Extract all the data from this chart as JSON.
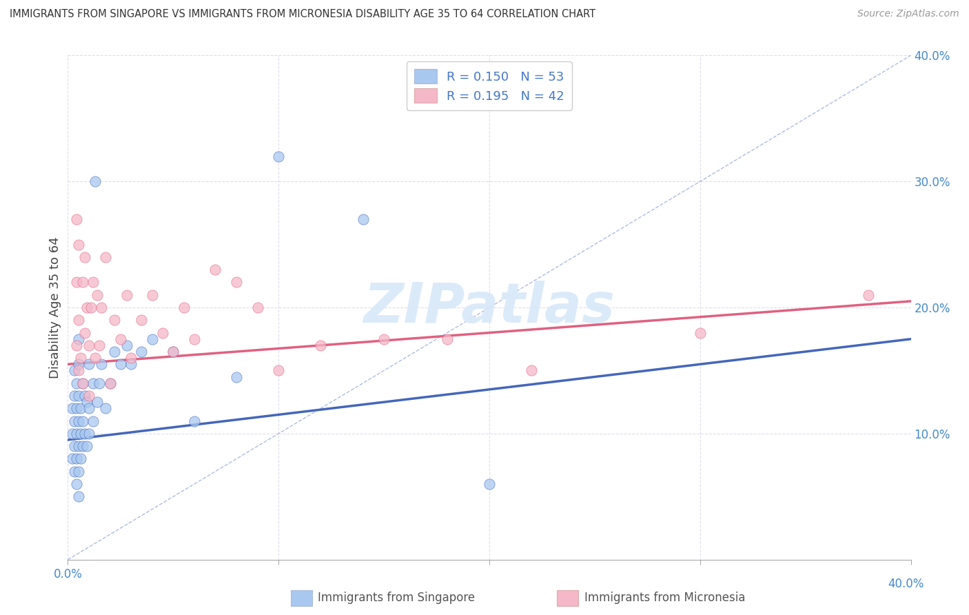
{
  "title": "IMMIGRANTS FROM SINGAPORE VS IMMIGRANTS FROM MICRONESIA DISABILITY AGE 35 TO 64 CORRELATION CHART",
  "source": "Source: ZipAtlas.com",
  "ylabel": "Disability Age 35 to 64",
  "xlim": [
    0.0,
    0.4
  ],
  "ylim": [
    0.0,
    0.4
  ],
  "legend_label1": "Immigrants from Singapore",
  "legend_label2": "Immigrants from Micronesia",
  "color_singapore": "#a8c8f0",
  "color_micronesia": "#f5b8c8",
  "color_trend_sg": "#4466bb",
  "color_trend_mc": "#e06080",
  "color_diagonal": "#99aadd",
  "watermark_color": "#d8e8f8",
  "singapore_x": [
    0.002,
    0.002,
    0.002,
    0.003,
    0.003,
    0.003,
    0.003,
    0.003,
    0.004,
    0.004,
    0.004,
    0.004,
    0.004,
    0.005,
    0.005,
    0.005,
    0.005,
    0.005,
    0.005,
    0.005,
    0.006,
    0.006,
    0.006,
    0.007,
    0.007,
    0.007,
    0.008,
    0.008,
    0.009,
    0.009,
    0.01,
    0.01,
    0.01,
    0.012,
    0.012,
    0.013,
    0.014,
    0.015,
    0.016,
    0.018,
    0.02,
    0.022,
    0.025,
    0.028,
    0.03,
    0.035,
    0.04,
    0.05,
    0.06,
    0.08,
    0.1,
    0.14,
    0.2
  ],
  "singapore_y": [
    0.08,
    0.1,
    0.12,
    0.07,
    0.09,
    0.11,
    0.13,
    0.15,
    0.06,
    0.08,
    0.1,
    0.12,
    0.14,
    0.05,
    0.07,
    0.09,
    0.11,
    0.13,
    0.155,
    0.175,
    0.08,
    0.1,
    0.12,
    0.09,
    0.11,
    0.14,
    0.1,
    0.13,
    0.09,
    0.125,
    0.1,
    0.12,
    0.155,
    0.11,
    0.14,
    0.3,
    0.125,
    0.14,
    0.155,
    0.12,
    0.14,
    0.165,
    0.155,
    0.17,
    0.155,
    0.165,
    0.175,
    0.165,
    0.11,
    0.145,
    0.32,
    0.27,
    0.06
  ],
  "micronesia_x": [
    0.004,
    0.004,
    0.004,
    0.005,
    0.005,
    0.005,
    0.006,
    0.007,
    0.007,
    0.008,
    0.008,
    0.009,
    0.01,
    0.01,
    0.011,
    0.012,
    0.013,
    0.014,
    0.015,
    0.016,
    0.018,
    0.02,
    0.022,
    0.025,
    0.028,
    0.03,
    0.035,
    0.04,
    0.045,
    0.05,
    0.055,
    0.06,
    0.07,
    0.08,
    0.09,
    0.1,
    0.12,
    0.15,
    0.18,
    0.22,
    0.3,
    0.38
  ],
  "micronesia_y": [
    0.17,
    0.22,
    0.27,
    0.15,
    0.19,
    0.25,
    0.16,
    0.14,
    0.22,
    0.18,
    0.24,
    0.2,
    0.13,
    0.17,
    0.2,
    0.22,
    0.16,
    0.21,
    0.17,
    0.2,
    0.24,
    0.14,
    0.19,
    0.175,
    0.21,
    0.16,
    0.19,
    0.21,
    0.18,
    0.165,
    0.2,
    0.175,
    0.23,
    0.22,
    0.2,
    0.15,
    0.17,
    0.175,
    0.175,
    0.15,
    0.18,
    0.21
  ],
  "trend_sg_x0": 0.0,
  "trend_sg_x1": 0.4,
  "trend_sg_y0": 0.095,
  "trend_sg_y1": 0.175,
  "trend_mc_x0": 0.0,
  "trend_mc_x1": 0.4,
  "trend_mc_y0": 0.155,
  "trend_mc_y1": 0.205
}
